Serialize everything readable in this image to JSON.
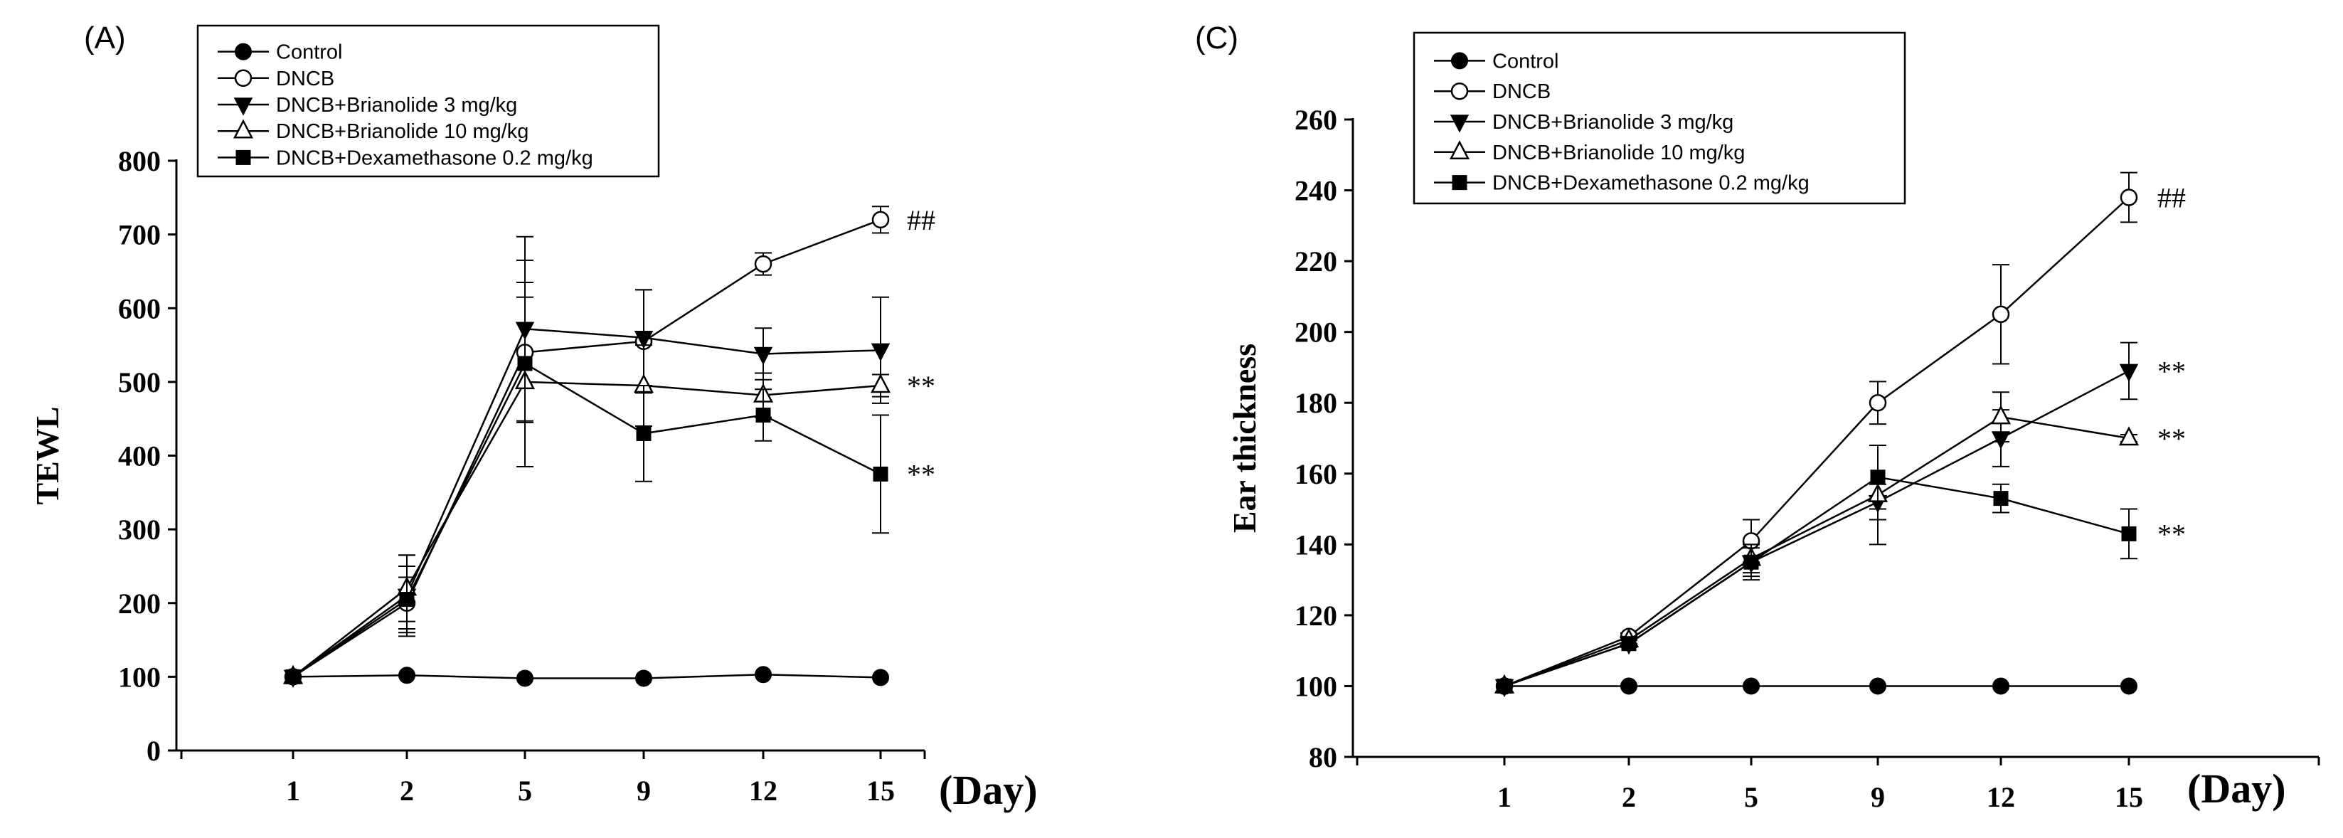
{
  "chart_data": [
    {
      "panel_label": "(A)",
      "type": "line",
      "ylabel": "TEWL",
      "xlabel": "(Day)",
      "categories": [
        "1",
        "2",
        "5",
        "9",
        "12",
        "15"
      ],
      "ylim": [
        0,
        800
      ],
      "yticks": [
        "0",
        "100",
        "200",
        "300",
        "400",
        "500",
        "600",
        "700",
        "800"
      ],
      "legend": [
        "Control",
        "DNCB",
        "DNCB+Brianolide 3 mg/kg",
        "DNCB+Brianolide 10 mg/kg",
        "DNCB+Dexamethasone 0.2 mg/kg"
      ],
      "series": [
        {
          "name": "Control",
          "marker": "filled-circle",
          "values": [
            100,
            102,
            98,
            98,
            103,
            99
          ],
          "errors": [
            0,
            0,
            0,
            0,
            0,
            0
          ]
        },
        {
          "name": "DNCB",
          "marker": "open-circle",
          "values": [
            100,
            200,
            540,
            555,
            660,
            720
          ],
          "errors": [
            0,
            35,
            95,
            70,
            15,
            18
          ]
        },
        {
          "name": "DNCB+Brianolide 3 mg/kg",
          "marker": "filled-triangle-down",
          "values": [
            100,
            210,
            572,
            560,
            538,
            543
          ],
          "errors": [
            0,
            55,
            125,
            65,
            35,
            72
          ]
        },
        {
          "name": "DNCB+Brianolide 10 mg/kg",
          "marker": "open-triangle-up",
          "values": [
            100,
            220,
            500,
            495,
            482,
            495
          ],
          "errors": [
            0,
            45,
            115,
            55,
            30,
            15
          ]
        },
        {
          "name": "DNCB+Dexamethasone 0.2 mg/kg",
          "marker": "filled-square",
          "values": [
            100,
            205,
            525,
            430,
            455,
            375
          ],
          "errors": [
            0,
            45,
            140,
            65,
            35,
            80
          ]
        }
      ],
      "annotations": [
        {
          "text": "##",
          "category": "15",
          "y": 720
        },
        {
          "text": "**",
          "category": "15",
          "y": 495
        },
        {
          "text": "**",
          "category": "15",
          "y": 375
        }
      ]
    },
    {
      "panel_label": "(C)",
      "type": "line",
      "ylabel": "Ear thickness",
      "xlabel": "(Day)",
      "categories": [
        "1",
        "2",
        "5",
        "9",
        "12",
        "15"
      ],
      "ylim": [
        80,
        260
      ],
      "yticks": [
        "80",
        "100",
        "120",
        "140",
        "160",
        "180",
        "200",
        "220",
        "240",
        "260"
      ],
      "legend": [
        "Control",
        "DNCB",
        "DNCB+Brianolide 3 mg/kg",
        "DNCB+Brianolide 10 mg/kg",
        "DNCB+Dexamethasone 0.2 mg/kg"
      ],
      "series": [
        {
          "name": "Control",
          "marker": "filled-circle",
          "values": [
            100,
            100,
            100,
            100,
            100,
            100
          ],
          "errors": [
            0,
            0,
            0,
            0,
            0,
            0
          ]
        },
        {
          "name": "DNCB",
          "marker": "open-circle",
          "values": [
            100,
            114,
            141,
            180,
            205,
            238
          ],
          "errors": [
            0,
            1,
            6,
            6,
            14,
            7
          ]
        },
        {
          "name": "DNCB+Brianolide 3 mg/kg",
          "marker": "filled-triangle-down",
          "values": [
            100,
            112,
            135,
            152,
            170,
            189
          ],
          "errors": [
            0,
            1,
            4,
            5,
            8,
            8
          ]
        },
        {
          "name": "DNCB+Brianolide 10 mg/kg",
          "marker": "open-triangle-up",
          "values": [
            100,
            113,
            136,
            154,
            176,
            170
          ],
          "errors": [
            0,
            1,
            4,
            14,
            7,
            1
          ]
        },
        {
          "name": "DNCB+Dexamethasone 0.2 mg/kg",
          "marker": "filled-square",
          "values": [
            100,
            112,
            135,
            159,
            153,
            143
          ],
          "errors": [
            0,
            1,
            5,
            9,
            4,
            7
          ]
        }
      ],
      "annotations": [
        {
          "text": "##",
          "category": "15",
          "y": 238
        },
        {
          "text": "**",
          "category": "15",
          "y": 189
        },
        {
          "text": "**",
          "category": "15",
          "y": 170
        },
        {
          "text": "**",
          "category": "15",
          "y": 143
        }
      ]
    }
  ]
}
